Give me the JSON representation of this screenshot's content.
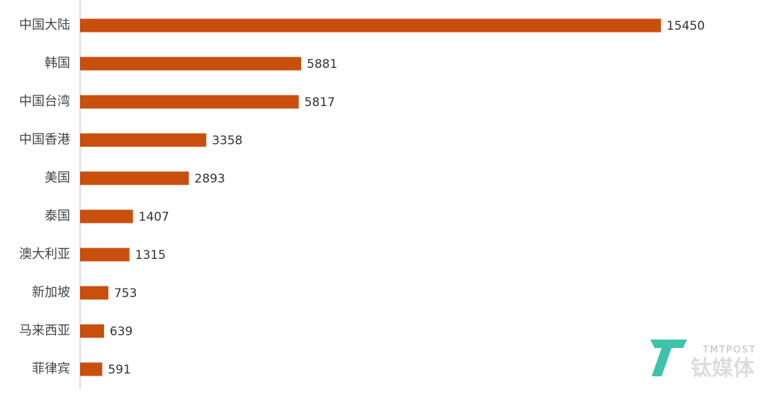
{
  "chart_data": {
    "type": "hbar",
    "categories": [
      "中国大陆",
      "韩国",
      "中国台湾",
      "中国香港",
      "美国",
      "泰国",
      "澳大利亚",
      "新加坡",
      "马来西亚",
      "菲律宾"
    ],
    "values": [
      15450,
      5881,
      5817,
      3358,
      2893,
      1407,
      1315,
      753,
      639,
      591
    ],
    "color": "#c94f0f"
  },
  "watermark": {
    "brand": "TMTPOST",
    "name": "钛媒体"
  }
}
